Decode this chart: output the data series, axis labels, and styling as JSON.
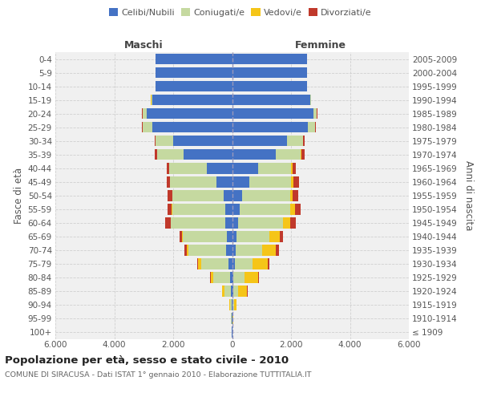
{
  "age_groups": [
    "100+",
    "95-99",
    "90-94",
    "85-89",
    "80-84",
    "75-79",
    "70-74",
    "65-69",
    "60-64",
    "55-59",
    "50-54",
    "45-49",
    "40-44",
    "35-39",
    "30-34",
    "25-29",
    "20-24",
    "15-19",
    "10-14",
    "5-9",
    "0-4"
  ],
  "birth_years": [
    "≤ 1909",
    "1910-1914",
    "1915-1919",
    "1920-1924",
    "1925-1929",
    "1930-1934",
    "1935-1939",
    "1940-1944",
    "1945-1949",
    "1950-1954",
    "1955-1959",
    "1960-1964",
    "1965-1969",
    "1970-1974",
    "1975-1979",
    "1980-1984",
    "1985-1989",
    "1990-1994",
    "1995-1999",
    "2000-2004",
    "2005-2009"
  ],
  "males_celibi": [
    8,
    12,
    20,
    40,
    70,
    130,
    200,
    180,
    220,
    220,
    280,
    520,
    850,
    1650,
    2000,
    2700,
    2900,
    2700,
    2600,
    2600,
    2600
  ],
  "males_coniugati": [
    8,
    18,
    55,
    230,
    580,
    920,
    1280,
    1480,
    1850,
    1820,
    1750,
    1580,
    1280,
    900,
    600,
    340,
    140,
    45,
    5,
    5,
    5
  ],
  "males_vedovi": [
    2,
    5,
    20,
    60,
    80,
    100,
    65,
    40,
    22,
    15,
    10,
    7,
    4,
    4,
    4,
    4,
    4,
    4,
    0,
    0,
    0
  ],
  "males_divorziati": [
    2,
    2,
    4,
    4,
    8,
    25,
    70,
    90,
    180,
    140,
    140,
    120,
    75,
    75,
    28,
    8,
    4,
    4,
    0,
    0,
    0
  ],
  "females_nubili": [
    8,
    10,
    20,
    30,
    45,
    85,
    130,
    160,
    195,
    245,
    345,
    590,
    890,
    1490,
    1870,
    2560,
    2750,
    2650,
    2550,
    2550,
    2550
  ],
  "females_coniugate": [
    8,
    15,
    50,
    170,
    380,
    620,
    900,
    1100,
    1520,
    1720,
    1620,
    1420,
    1120,
    840,
    540,
    260,
    130,
    30,
    5,
    5,
    5
  ],
  "females_vedove": [
    4,
    16,
    70,
    310,
    460,
    510,
    460,
    360,
    260,
    175,
    100,
    68,
    40,
    22,
    10,
    7,
    3,
    3,
    0,
    0,
    0
  ],
  "females_divorziate": [
    2,
    2,
    4,
    8,
    25,
    55,
    90,
    110,
    185,
    185,
    185,
    185,
    110,
    110,
    45,
    15,
    4,
    4,
    0,
    0,
    0
  ],
  "color_celibi": "#4472C4",
  "color_coniugati": "#c5d9a0",
  "color_vedovi": "#f5c518",
  "color_divorziati": "#c0392b",
  "xlim": 6000,
  "xticks": [
    -6000,
    -4000,
    -2000,
    0,
    2000,
    4000,
    6000
  ],
  "xticklabels": [
    "6.000",
    "4.000",
    "2.000",
    "0",
    "2.000",
    "4.000",
    "6.000"
  ],
  "title": "Popolazione per età, sesso e stato civile - 2010",
  "subtitle": "COMUNE DI SIRACUSA - Dati ISTAT 1° gennaio 2010 - Elaborazione TUTTITALIA.IT",
  "ylabel_left": "Fasce di età",
  "ylabel_right": "Anni di nascita",
  "maschi_label": "Maschi",
  "femmine_label": "Femmine",
  "legend_labels": [
    "Celibi/Nubili",
    "Coniugati/e",
    "Vedovi/e",
    "Divorziati/e"
  ],
  "bg_color": "#f0f0f0",
  "grid_color": "#d0d0d0"
}
